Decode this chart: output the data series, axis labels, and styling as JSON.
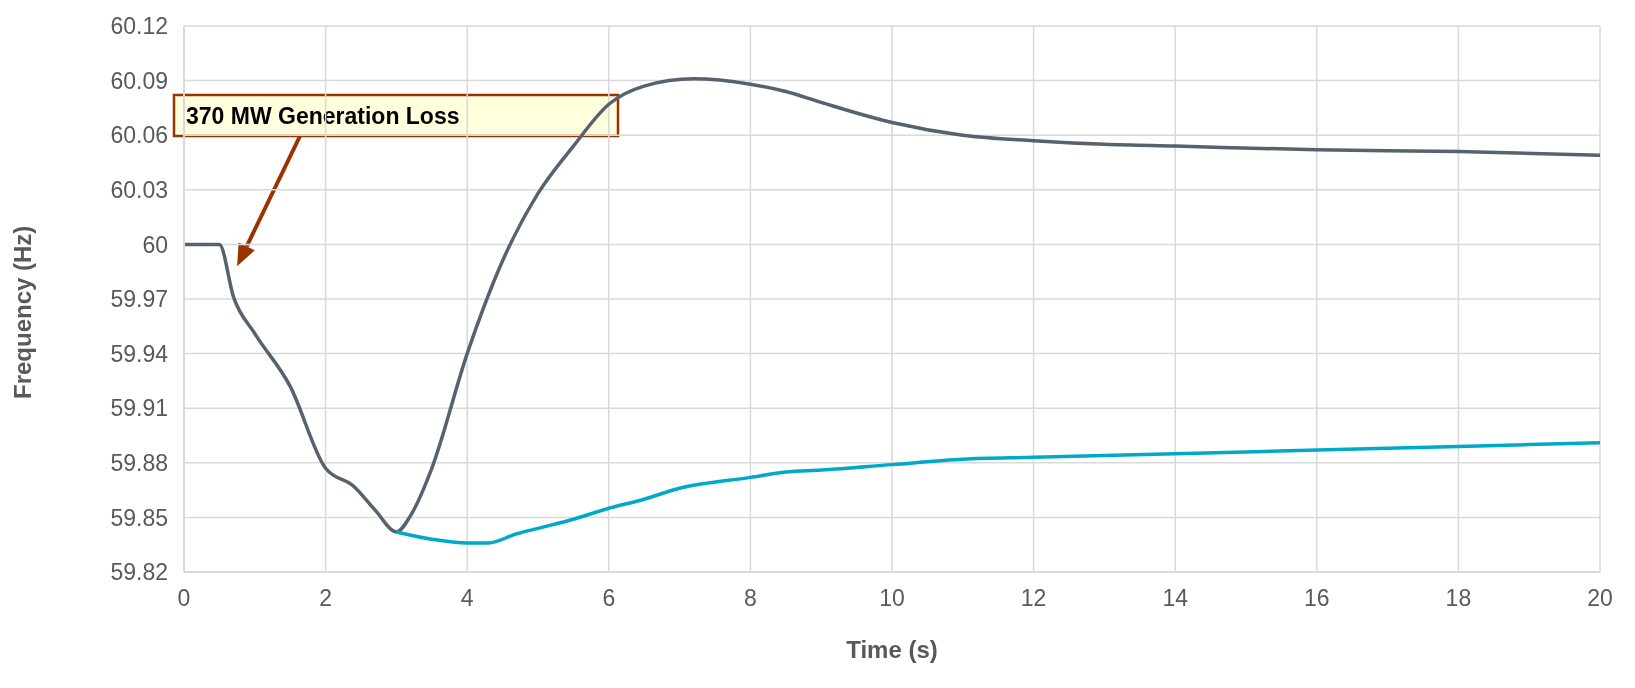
{
  "chart_data": {
    "type": "line",
    "xlabel": "Time (s)",
    "ylabel": "Frequency (Hz)",
    "xlim": [
      0,
      20
    ],
    "xticks": [
      0,
      2,
      4,
      6,
      8,
      10,
      12,
      14,
      16,
      18,
      20
    ],
    "ylim": [
      59.82,
      60.12
    ],
    "yticks": [
      59.82,
      59.85,
      59.88,
      59.91,
      59.94,
      59.97,
      60,
      60.03,
      60.06,
      60.09,
      60.12
    ],
    "grid": true,
    "legend": false,
    "marker": "none",
    "line_style": "solid",
    "annotations": [
      "370 MW Generation Loss"
    ],
    "series": [
      {
        "color": "#56636e",
        "x": [
          0,
          0.5,
          0.7,
          1,
          1.5,
          2,
          2.4,
          2.7,
          3,
          3.2,
          3.5,
          4,
          4.5,
          5,
          5.5,
          6,
          6.5,
          7.2,
          8,
          8.5,
          9,
          10,
          11,
          12,
          13,
          14,
          16,
          18,
          20
        ],
        "values": [
          60,
          60,
          59.971,
          59.951,
          59.922,
          59.877,
          59.867,
          59.854,
          59.842,
          59.851,
          59.877,
          59.94,
          59.991,
          60.028,
          60.054,
          60.077,
          60.087,
          60.091,
          60.088,
          60.084,
          60.078,
          60.067,
          60.06,
          60.057,
          60.055,
          60.054,
          60.052,
          60.051,
          60.049
        ]
      },
      {
        "color": "#00a9c8",
        "x": [
          3,
          3.5,
          4,
          4.3,
          4.7,
          5,
          5.5,
          6,
          6.5,
          7,
          8,
          8.5,
          9,
          10,
          11,
          12,
          14,
          16,
          18,
          20
        ],
        "values": [
          59.842,
          59.838,
          59.836,
          59.836,
          59.841,
          59.844,
          59.849,
          59.855,
          59.86,
          59.866,
          59.872,
          59.875,
          59.876,
          59.879,
          59.882,
          59.883,
          59.885,
          59.887,
          59.889,
          59.891
        ]
      }
    ]
  }
}
